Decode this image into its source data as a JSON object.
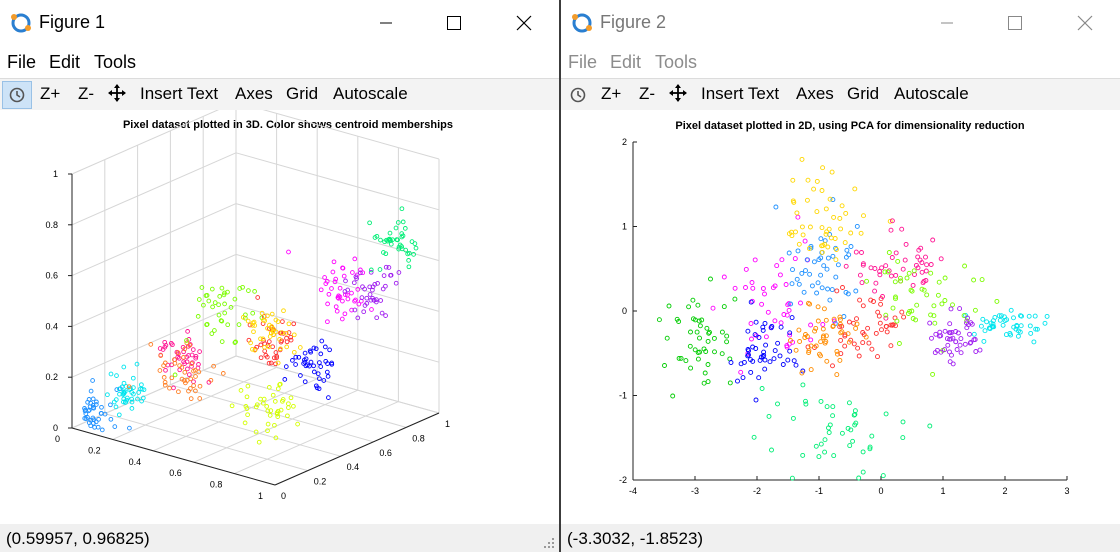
{
  "colors": {
    "icon_blue": "#2a7fd1",
    "icon_orange": "#f39c2b",
    "active_tool_bg": "#cde3f7"
  },
  "figure1": {
    "title": "Figure 1",
    "menu": [
      "File",
      "Edit",
      "Tools"
    ],
    "toolbar": {
      "zoom_in": "Z+",
      "zoom_out": "Z-",
      "insert_text": "Insert Text",
      "axes": "Axes",
      "grid": "Grid",
      "autoscale": "Autoscale"
    },
    "status": "(0.59957, 0.96825)"
  },
  "figure2": {
    "title": "Figure 2",
    "menu": [
      "File",
      "Edit",
      "Tools"
    ],
    "toolbar": {
      "zoom_in": "Z+",
      "zoom_out": "Z-",
      "insert_text": "Insert Text",
      "axes": "Axes",
      "grid": "Grid",
      "autoscale": "Autoscale"
    },
    "status": "(-3.3032, -1.8523)"
  },
  "chart_data": [
    {
      "type": "scatter",
      "title": "Pixel dataset plotted in 3D. Color shows centroid memberships",
      "dimensions": 3,
      "grid": true,
      "x_ticks": [
        "0",
        "0.2",
        "0.4",
        "0.6",
        "0.8",
        "1"
      ],
      "y_ticks": [
        "0",
        "0.2",
        "0.4",
        "0.6",
        "0.8",
        "1"
      ],
      "z_ticks": [
        "0",
        "0.2",
        "0.4",
        "0.6",
        "0.8",
        "1"
      ],
      "xlim": [
        0,
        1
      ],
      "ylim": [
        0,
        1
      ],
      "zlim": [
        0,
        1
      ],
      "marker": "open circle",
      "clusters": [
        {
          "color": "#1e90ff",
          "center": [
            0.05,
            0.08,
            0.05
          ],
          "spread": [
            0.04,
            0.04,
            0.04
          ]
        },
        {
          "color": "#00e5ee",
          "center": [
            0.14,
            0.15,
            0.13
          ],
          "spread": [
            0.04,
            0.04,
            0.04
          ]
        },
        {
          "color": "#ff1493",
          "center": [
            0.3,
            0.3,
            0.27
          ],
          "spread": [
            0.05,
            0.05,
            0.05
          ]
        },
        {
          "color": "#ff7f24",
          "center": [
            0.38,
            0.22,
            0.25
          ],
          "spread": [
            0.05,
            0.05,
            0.05
          ]
        },
        {
          "color": "#7cfc00",
          "center": [
            0.35,
            0.5,
            0.4
          ],
          "spread": [
            0.07,
            0.07,
            0.07
          ]
        },
        {
          "color": "#ff3030",
          "center": [
            0.62,
            0.45,
            0.35
          ],
          "spread": [
            0.05,
            0.05,
            0.05
          ]
        },
        {
          "color": "#ff00ff",
          "center": [
            0.72,
            0.75,
            0.5
          ],
          "spread": [
            0.06,
            0.06,
            0.06
          ]
        },
        {
          "color": "#0000ff",
          "center": [
            0.82,
            0.45,
            0.3
          ],
          "spread": [
            0.05,
            0.05,
            0.05
          ]
        },
        {
          "color": "#ffd700",
          "center": [
            0.72,
            0.32,
            0.45
          ],
          "spread": [
            0.05,
            0.05,
            0.05
          ]
        },
        {
          "color": "#a020f0",
          "center": [
            0.85,
            0.78,
            0.5
          ],
          "spread": [
            0.05,
            0.05,
            0.05
          ]
        },
        {
          "color": "#00ee76",
          "center": [
            0.92,
            0.85,
            0.7
          ],
          "spread": [
            0.05,
            0.05,
            0.05
          ]
        },
        {
          "color": "#d4ff00",
          "center": [
            0.8,
            0.2,
            0.2
          ],
          "spread": [
            0.05,
            0.05,
            0.05
          ]
        }
      ]
    },
    {
      "type": "scatter",
      "title": "Pixel dataset plotted in 2D, using PCA for dimensionality reduction",
      "dimensions": 2,
      "grid": false,
      "xlim": [
        -4,
        3
      ],
      "ylim": [
        -2,
        2
      ],
      "x_ticks": [
        "-4",
        "-3",
        "-2",
        "-1",
        "0",
        "1",
        "2",
        "3"
      ],
      "y_ticks": [
        "-2",
        "-1",
        "0",
        "1",
        "2"
      ],
      "marker": "open circle",
      "clusters": [
        {
          "color": "#00e5ee",
          "center": [
            2.0,
            -0.15
          ],
          "spread": [
            0.3,
            0.08
          ]
        },
        {
          "color": "#00cc00",
          "center": [
            -2.9,
            -0.4
          ],
          "spread": [
            0.3,
            0.3
          ]
        },
        {
          "color": "#ff00ff",
          "center": [
            -1.7,
            0.1
          ],
          "spread": [
            0.45,
            0.35
          ]
        },
        {
          "color": "#1e90ff",
          "center": [
            -1.0,
            0.5
          ],
          "spread": [
            0.35,
            0.3
          ]
        },
        {
          "color": "#0000ff",
          "center": [
            -1.9,
            -0.5
          ],
          "spread": [
            0.3,
            0.2
          ]
        },
        {
          "color": "#ff3030",
          "center": [
            -0.3,
            -0.2
          ],
          "spread": [
            0.3,
            0.2
          ]
        },
        {
          "color": "#ffd700",
          "center": [
            -0.8,
            1.1
          ],
          "spread": [
            0.35,
            0.3
          ]
        },
        {
          "color": "#ff8c00",
          "center": [
            -1.0,
            -0.3
          ],
          "spread": [
            0.3,
            0.2
          ]
        },
        {
          "color": "#ff1493",
          "center": [
            0.3,
            0.5
          ],
          "spread": [
            0.35,
            0.2
          ]
        },
        {
          "color": "#7cfc00",
          "center": [
            0.7,
            0.2
          ],
          "spread": [
            0.4,
            0.3
          ]
        },
        {
          "color": "#a020f0",
          "center": [
            1.2,
            -0.3
          ],
          "spread": [
            0.2,
            0.15
          ]
        },
        {
          "color": "#00ee76",
          "center": [
            -0.8,
            -1.4
          ],
          "spread": [
            0.6,
            0.3
          ]
        }
      ]
    }
  ]
}
